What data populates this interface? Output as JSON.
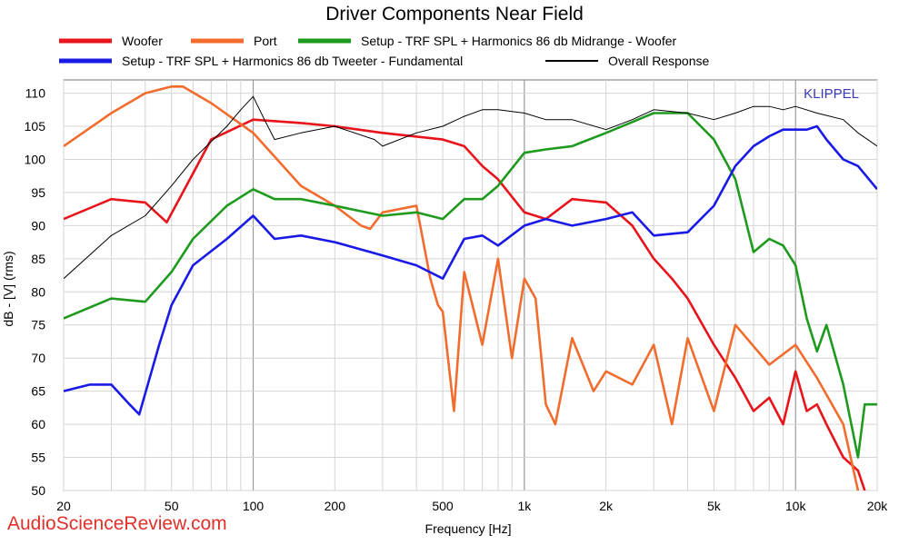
{
  "watermark": "AudioScienceReview.com",
  "chart_data": {
    "type": "line",
    "title": "Driver Components Near Field",
    "xlabel": "Frequency [Hz]",
    "ylabel": "dB - [V] (rms)",
    "annotation": "KLIPPEL",
    "x_scale": "log",
    "xlim": [
      20,
      20000
    ],
    "ylim": [
      50,
      112
    ],
    "x_ticks": [
      {
        "value": 20,
        "label": "20"
      },
      {
        "value": 50,
        "label": "50"
      },
      {
        "value": 100,
        "label": "100"
      },
      {
        "value": 200,
        "label": "200"
      },
      {
        "value": 500,
        "label": "500"
      },
      {
        "value": 1000,
        "label": "1k"
      },
      {
        "value": 2000,
        "label": "2k"
      },
      {
        "value": 5000,
        "label": "5k"
      },
      {
        "value": 10000,
        "label": "10k"
      },
      {
        "value": 20000,
        "label": "20k"
      }
    ],
    "y_ticks": [
      50,
      55,
      60,
      65,
      70,
      75,
      80,
      85,
      90,
      95,
      100,
      105,
      110
    ],
    "grid": true,
    "legend_position": "top",
    "series": [
      {
        "name": "Woofer",
        "color": "#e8141b",
        "x": [
          20,
          30,
          40,
          48,
          55,
          70,
          100,
          150,
          200,
          300,
          500,
          600,
          700,
          800,
          1000,
          1200,
          1500,
          2000,
          2500,
          3000,
          3500,
          4000,
          5000,
          6000,
          7000,
          8000,
          9000,
          10000,
          11000,
          12000,
          13000,
          15000,
          17000,
          18000
        ],
        "y": [
          91,
          94,
          93.5,
          90.5,
          95,
          103,
          106,
          105.5,
          105,
          104,
          103,
          102,
          99,
          97,
          92,
          91,
          94,
          93.5,
          90,
          85,
          82,
          79,
          72,
          67,
          62,
          64,
          60,
          68,
          62,
          63,
          60,
          55,
          53,
          50
        ]
      },
      {
        "name": "Port",
        "color": "#f26c2e",
        "x": [
          20,
          30,
          40,
          50,
          55,
          70,
          100,
          150,
          200,
          250,
          270,
          300,
          400,
          450,
          480,
          500,
          550,
          600,
          700,
          800,
          900,
          1000,
          1100,
          1200,
          1300,
          1500,
          1800,
          2000,
          2500,
          3000,
          3500,
          4000,
          5000,
          6000,
          8000,
          10000,
          12000,
          15000,
          17000
        ],
        "y": [
          102,
          107,
          110,
          111,
          111,
          108.5,
          104,
          96,
          93,
          90,
          89.5,
          92,
          93,
          82,
          78,
          77,
          62,
          83,
          72,
          85,
          70,
          82,
          79,
          63,
          60,
          73,
          65,
          68,
          66,
          72,
          60,
          73,
          62,
          75,
          69,
          72,
          67,
          60,
          50
        ]
      },
      {
        "name": "Setup - TRF SPL + Harmonics 86 db Midrange - Woofer",
        "color": "#1e9a1e",
        "x": [
          20,
          30,
          40,
          50,
          60,
          80,
          100,
          120,
          150,
          200,
          300,
          400,
          500,
          600,
          700,
          800,
          1000,
          1200,
          1500,
          2000,
          3000,
          4000,
          5000,
          6000,
          7000,
          8000,
          9000,
          10000,
          11000,
          12000,
          13000,
          15000,
          17000,
          18000,
          20000
        ],
        "y": [
          76,
          79,
          78.5,
          83,
          88,
          93,
          95.5,
          94,
          94,
          93,
          91.5,
          92,
          91,
          94,
          94,
          96,
          101,
          101.5,
          102,
          104,
          107,
          107,
          103,
          97,
          86,
          88,
          87,
          84,
          76,
          71,
          75,
          66,
          55,
          63,
          63
        ]
      },
      {
        "name": "Setup - TRF SPL + Harmonics 86 db Tweeter - Fundamental",
        "color": "#1a1ae6",
        "x": [
          20,
          25,
          30,
          35,
          38,
          45,
          50,
          60,
          80,
          100,
          120,
          150,
          200,
          300,
          400,
          500,
          600,
          700,
          800,
          1000,
          1200,
          1500,
          2000,
          2500,
          3000,
          4000,
          5000,
          6000,
          7000,
          8000,
          9000,
          10000,
          11000,
          12000,
          13000,
          15000,
          17000,
          20000
        ],
        "y": [
          65,
          66,
          66,
          63,
          61.5,
          72,
          78,
          84,
          88,
          91.5,
          88,
          88.5,
          87.5,
          85.5,
          84,
          82,
          88,
          88.5,
          87,
          90,
          91,
          90,
          91,
          92,
          88.5,
          89,
          93,
          99,
          102,
          103.5,
          104.5,
          104.5,
          104.5,
          105,
          103,
          100,
          99,
          95.5
        ]
      },
      {
        "name": "Overall Response",
        "color": "#000000",
        "x": [
          20,
          30,
          40,
          50,
          60,
          80,
          90,
          100,
          110,
          120,
          150,
          200,
          280,
          300,
          400,
          500,
          600,
          700,
          800,
          1000,
          1200,
          1500,
          2000,
          2500,
          3000,
          4000,
          5000,
          6000,
          7000,
          8000,
          9000,
          10000,
          12000,
          15000,
          17000,
          20000
        ],
        "y": [
          82,
          88.5,
          91.5,
          96,
          100,
          105,
          107.5,
          109.5,
          106,
          103,
          104,
          105,
          103,
          102,
          104,
          105,
          106.5,
          107.5,
          107.5,
          107,
          106,
          106,
          104.5,
          106,
          107.5,
          107,
          106,
          107,
          108,
          108,
          107.5,
          108,
          107,
          106,
          104,
          102
        ]
      }
    ]
  }
}
